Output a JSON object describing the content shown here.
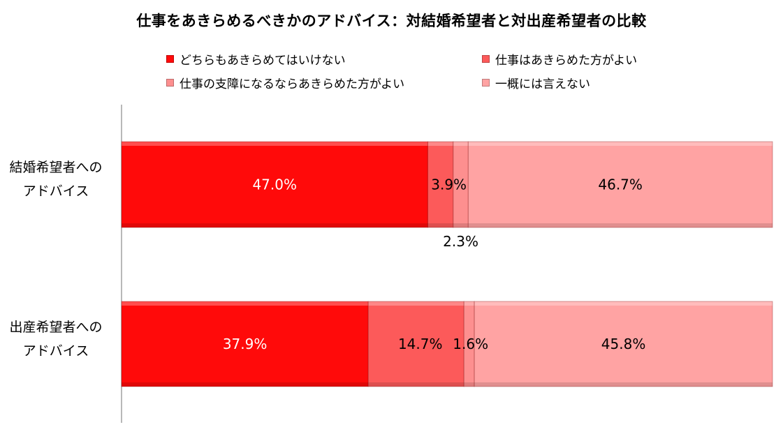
{
  "chart_data": {
    "type": "bar",
    "orientation": "horizontal",
    "stacked": true,
    "percent": true,
    "title": "仕事をあきらめるべきかのアドバイス：対結婚希望者と対出産希望者の比較",
    "categories": [
      [
        "結婚希望者への",
        "アドバイス"
      ],
      [
        "出産希望者への",
        "アドバイス"
      ]
    ],
    "series": [
      {
        "name": "どちらもあきらめてはいけない",
        "values": [
          47.0,
          37.9
        ],
        "labels": [
          "47.0%",
          "37.9%"
        ],
        "color": "#ff0a0a",
        "label_color": "#ffffff"
      },
      {
        "name": "仕事はあきらめた方がよい",
        "values": [
          3.9,
          14.7
        ],
        "labels": [
          "3.9%",
          "14.7%"
        ],
        "color": "#fc5a5a",
        "label_color": "#000000"
      },
      {
        "name": "仕事の支障になるならあきらめた方がよい",
        "values": [
          2.3,
          1.6
        ],
        "labels": [
          "2.3%",
          "1.6%"
        ],
        "color": "#fd8f8f",
        "label_color": "#000000"
      },
      {
        "name": "一概には言えない",
        "values": [
          46.7,
          45.8
        ],
        "labels": [
          "46.7%",
          "45.8%"
        ],
        "color": "#ffa3a3",
        "label_color": "#000000"
      }
    ],
    "xlim": [
      0,
      100
    ],
    "grid": false,
    "legend_position": "top"
  }
}
